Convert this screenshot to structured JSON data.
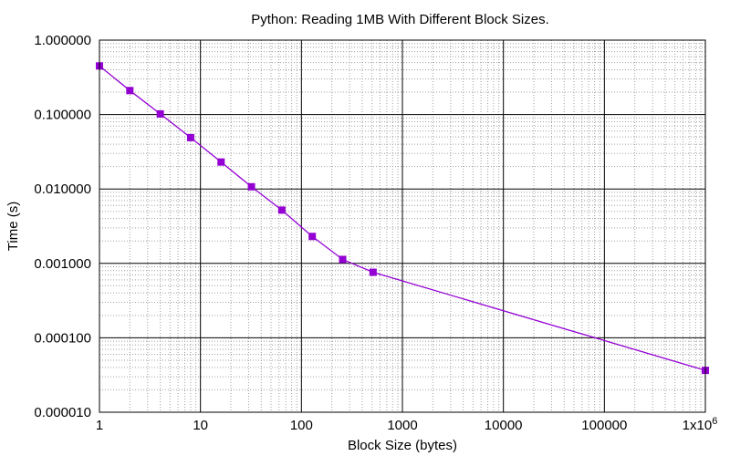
{
  "chart_data": {
    "type": "line",
    "title": "Python: Reading 1MB With Different Block Sizes.",
    "xlabel": "Block Size (bytes)",
    "ylabel": "Time (s)",
    "x_scale": "log",
    "y_scale": "log",
    "xlim": [
      1,
      1000000
    ],
    "ylim": [
      1e-05,
      1
    ],
    "grid": true,
    "x_ticks": [
      {
        "value": 1,
        "label": "1"
      },
      {
        "value": 10,
        "label": "10"
      },
      {
        "value": 100,
        "label": "100"
      },
      {
        "value": 1000,
        "label": "1000"
      },
      {
        "value": 10000,
        "label": "10000"
      },
      {
        "value": 100000,
        "label": "100000"
      },
      {
        "value": 1000000,
        "label": "1x10",
        "label_exponent": "6"
      }
    ],
    "y_ticks": [
      {
        "value": 1e-05,
        "label": "0.000010"
      },
      {
        "value": 0.0001,
        "label": "0.000100"
      },
      {
        "value": 0.001,
        "label": "0.001000"
      },
      {
        "value": 0.01,
        "label": "0.010000"
      },
      {
        "value": 0.1,
        "label": "0.100000"
      },
      {
        "value": 1,
        "label": "1.000000"
      }
    ],
    "series": [
      {
        "color": "#9400d3",
        "marker": "square",
        "x": [
          1,
          2,
          4,
          8,
          16,
          32,
          64,
          128,
          256,
          512,
          1000000
        ],
        "y": [
          0.45,
          0.21,
          0.102,
          0.049,
          0.023,
          0.0107,
          0.0052,
          0.0023,
          0.00113,
          0.00076,
          3.65e-05
        ]
      }
    ]
  }
}
